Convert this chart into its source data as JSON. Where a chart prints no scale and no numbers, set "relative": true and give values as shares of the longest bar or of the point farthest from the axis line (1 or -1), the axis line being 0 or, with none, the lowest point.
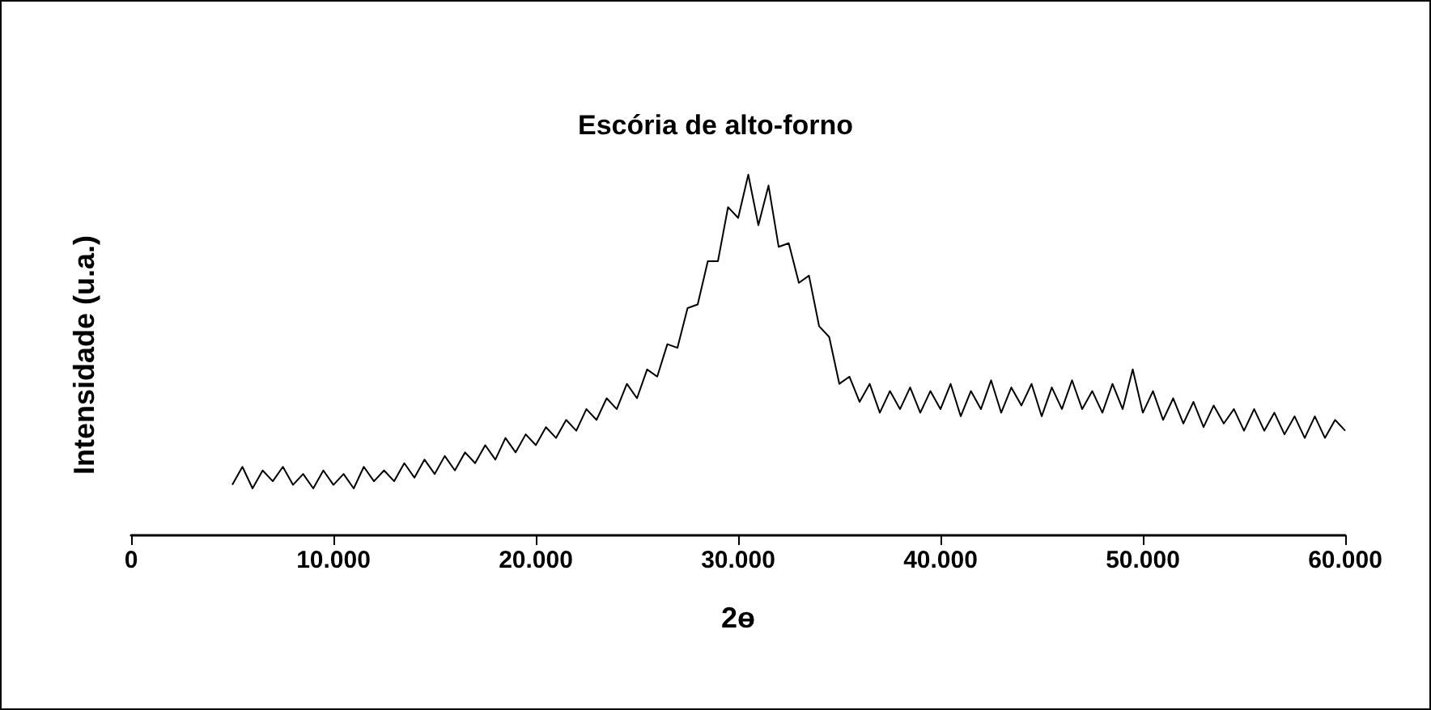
{
  "chart_data": {
    "type": "line",
    "title": "Escória de alto-forno",
    "xlabel": "2ɵ",
    "ylabel": "Intensidade (u.a.)",
    "relative": true,
    "color": "#000000",
    "marker": "none",
    "grid": false,
    "xlim": [
      0,
      60000
    ],
    "xticks": [
      0,
      {
        "value": 10000,
        "label": "10.000"
      },
      {
        "value": 20000,
        "label": "20.000"
      },
      {
        "value": 30000,
        "label": "30.000"
      },
      {
        "value": 40000,
        "label": "40.000"
      },
      {
        "value": 50000,
        "label": "50.000"
      },
      {
        "value": 60000,
        "label": "60.000"
      }
    ],
    "x": [
      5000,
      5500,
      6000,
      6500,
      7000,
      7500,
      8000,
      8500,
      9000,
      9500,
      10000,
      10500,
      11000,
      11500,
      12000,
      12500,
      13000,
      13500,
      14000,
      14500,
      15000,
      15500,
      16000,
      16500,
      17000,
      17500,
      18000,
      18500,
      19000,
      19500,
      20000,
      20500,
      21000,
      21500,
      22000,
      22500,
      23000,
      23500,
      24000,
      24500,
      25000,
      25500,
      26000,
      26500,
      27000,
      27500,
      28000,
      28500,
      29000,
      29500,
      30000,
      30500,
      31000,
      31500,
      32000,
      32500,
      33000,
      33500,
      34000,
      34500,
      35000,
      35500,
      36000,
      36500,
      37000,
      37500,
      38000,
      38500,
      39000,
      39500,
      40000,
      40500,
      41000,
      41500,
      42000,
      42500,
      43000,
      43500,
      44000,
      44500,
      45000,
      45500,
      46000,
      46500,
      47000,
      47500,
      48000,
      48500,
      49000,
      49500,
      50000,
      50500,
      51000,
      51500,
      52000,
      52500,
      53000,
      53500,
      54000,
      54500,
      55000,
      55500,
      56000,
      56500,
      57000,
      57500,
      58000,
      58500,
      59000,
      59500,
      60000
    ],
    "values": [
      0.14,
      0.19,
      0.13,
      0.18,
      0.15,
      0.19,
      0.14,
      0.17,
      0.13,
      0.18,
      0.14,
      0.17,
      0.13,
      0.19,
      0.15,
      0.18,
      0.15,
      0.2,
      0.16,
      0.21,
      0.17,
      0.22,
      0.18,
      0.23,
      0.2,
      0.25,
      0.21,
      0.27,
      0.23,
      0.28,
      0.25,
      0.3,
      0.27,
      0.32,
      0.29,
      0.35,
      0.32,
      0.38,
      0.35,
      0.42,
      0.38,
      0.46,
      0.44,
      0.53,
      0.52,
      0.63,
      0.64,
      0.76,
      0.76,
      0.91,
      0.88,
      1,
      0.86,
      0.97,
      0.8,
      0.81,
      0.7,
      0.72,
      0.58,
      0.55,
      0.42,
      0.44,
      0.37,
      0.42,
      0.34,
      0.4,
      0.35,
      0.41,
      0.34,
      0.4,
      0.35,
      0.42,
      0.33,
      0.4,
      0.35,
      0.43,
      0.34,
      0.41,
      0.36,
      0.42,
      0.33,
      0.41,
      0.35,
      0.43,
      0.35,
      0.4,
      0.34,
      0.42,
      0.35,
      0.46,
      0.34,
      0.4,
      0.32,
      0.38,
      0.31,
      0.37,
      0.3,
      0.36,
      0.31,
      0.35,
      0.29,
      0.35,
      0.29,
      0.34,
      0.28,
      0.33,
      0.27,
      0.33,
      0.27,
      0.32,
      0.29
    ]
  }
}
